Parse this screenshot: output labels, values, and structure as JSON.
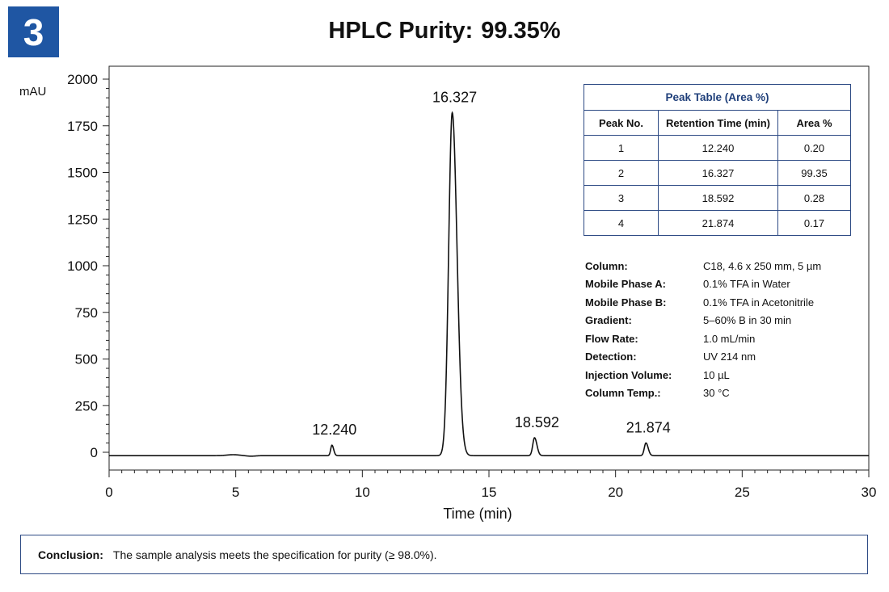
{
  "badge": "3",
  "title": {
    "label": "HPLC Purity:",
    "value": "99.35%"
  },
  "chart_data": {
    "type": "line",
    "xlabel": "Time (min)",
    "ylabel": "mAU",
    "xlim": [
      0,
      30
    ],
    "ylim": [
      -100,
      2000
    ],
    "xticks": [
      0,
      5,
      10,
      15,
      20,
      25,
      30
    ],
    "yticks": [
      0,
      250,
      500,
      750,
      1000,
      1250,
      1500,
      1750,
      2000
    ],
    "grid": false,
    "baseline": -18,
    "x": [
      0,
      4.9,
      5.5,
      8.6,
      8.8,
      9.0,
      13.0,
      13.55,
      14.2,
      16.6,
      16.8,
      17.0,
      21.0,
      21.2,
      21.4,
      30
    ],
    "y": [
      -18,
      -12,
      -20,
      -18,
      38,
      -18,
      -18,
      1820,
      -18,
      -18,
      78,
      -18,
      -18,
      50,
      -18,
      -18
    ],
    "peaks": [
      {
        "label": "12.240",
        "x": 8.8,
        "y": 38
      },
      {
        "label": "16.327",
        "x": 13.55,
        "y": 1820
      },
      {
        "label": "18.592",
        "x": 16.8,
        "y": 78
      },
      {
        "label": "21.874",
        "x": 21.2,
        "y": 50
      }
    ]
  },
  "peak_table": {
    "caption": "Peak Table (Area %)",
    "headers": [
      "Peak No.",
      "Retention Time (min)",
      "Area %"
    ],
    "rows": [
      [
        "1",
        "12.240",
        "0.20"
      ],
      [
        "2",
        "16.327",
        "99.35"
      ],
      [
        "3",
        "18.592",
        "0.28"
      ],
      [
        "4",
        "21.874",
        "0.17"
      ]
    ]
  },
  "method": [
    {
      "label": "Column:",
      "value": "C18, 4.6 x 250 mm, 5 µm"
    },
    {
      "label": "Mobile Phase A:",
      "value": "0.1% TFA in Water"
    },
    {
      "label": "Mobile Phase B:",
      "value": "0.1% TFA in Acetonitrile"
    },
    {
      "label": "Gradient:",
      "value": "5–60% B in 30 min"
    },
    {
      "label": "Flow Rate:",
      "value": "1.0 mL/min"
    },
    {
      "label": "Detection:",
      "value": "UV 214 nm"
    },
    {
      "label": "Injection Volume:",
      "value": "10 µL"
    },
    {
      "label": "Column Temp.:",
      "value": "30 °C"
    }
  ],
  "conclusion": {
    "label": "Conclusion:",
    "text": "The sample analysis meets the specification for purity (≥ 98.0%)."
  },
  "colors": {
    "accent": "#1f56a3",
    "border": "#2d4a84",
    "header_text": "#1f3f7a",
    "trace": "#111111"
  }
}
